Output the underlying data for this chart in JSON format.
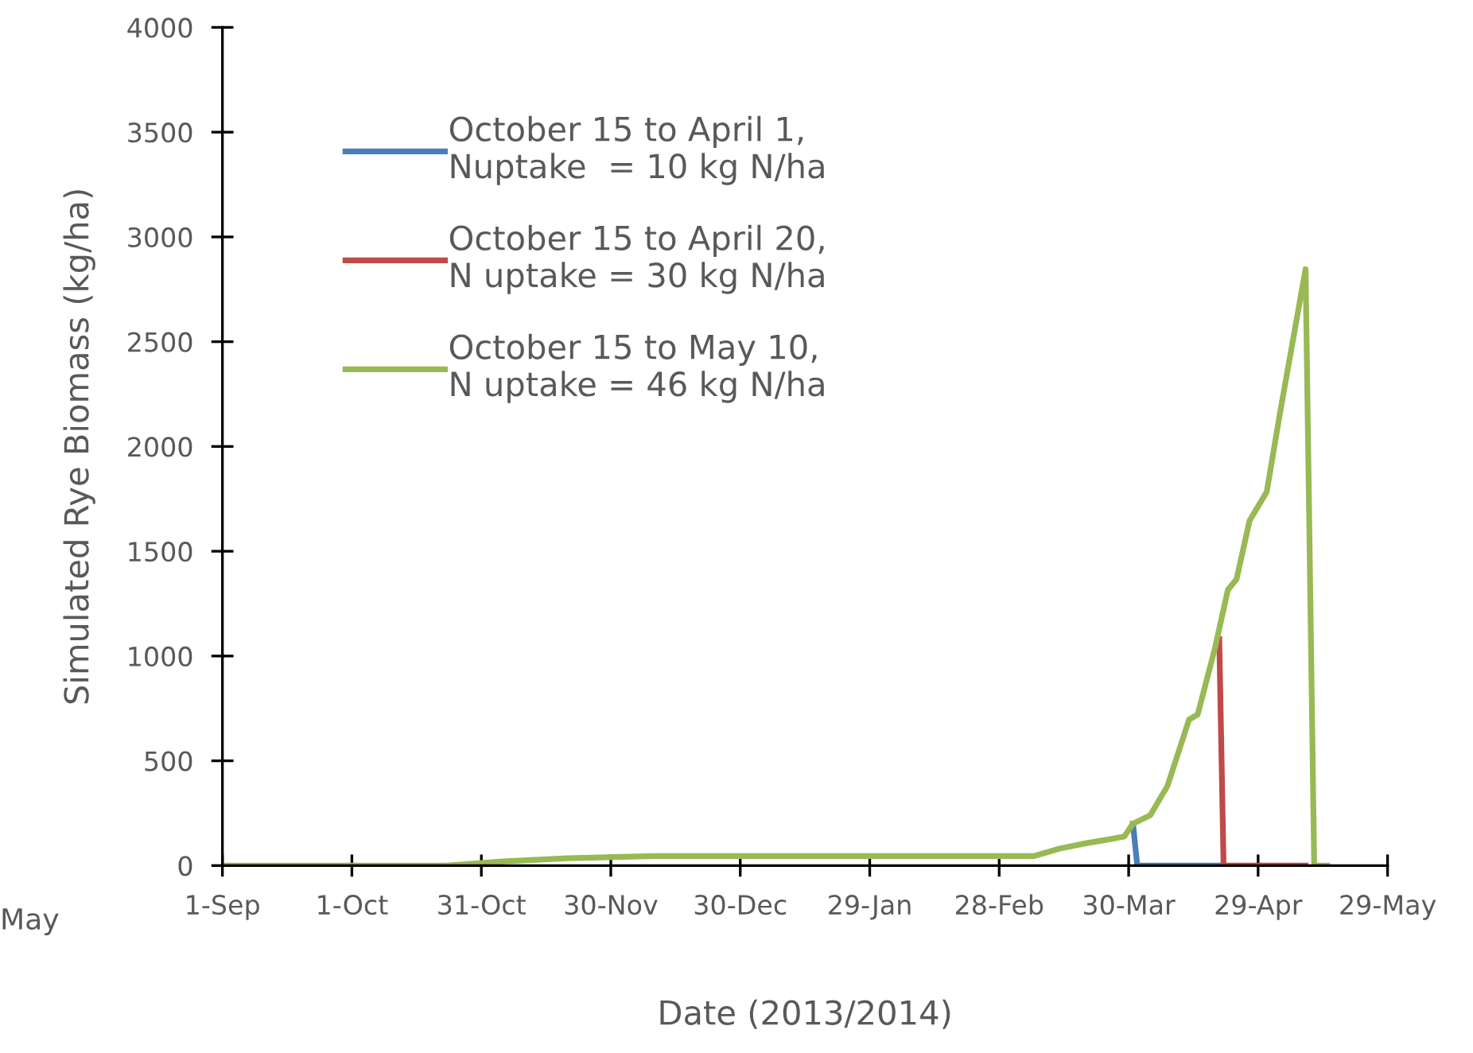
{
  "chart_data": {
    "type": "line",
    "xlabel": "Date (2013/2014)",
    "ylabel": "Simulated Rye Biomass (kg/ha)",
    "xlim": [
      "2013-09-01",
      "2014-05-29"
    ],
    "xticks": [
      {
        "value": "2013-09-01",
        "label": "1-Sep"
      },
      {
        "value": "2013-10-01",
        "label": "1-Oct"
      },
      {
        "value": "2013-10-31",
        "label": "31-Oct"
      },
      {
        "value": "2013-11-30",
        "label": "30-Nov"
      },
      {
        "value": "2013-12-30",
        "label": "30-Dec"
      },
      {
        "value": "2014-01-29",
        "label": "29-Jan"
      },
      {
        "value": "2014-02-28",
        "label": "28-Feb"
      },
      {
        "value": "2014-03-30",
        "label": "30-Mar"
      },
      {
        "value": "2014-04-29",
        "label": "29-Apr"
      },
      {
        "value": "2014-05-29",
        "label": "29-May"
      }
    ],
    "ylim": [
      0,
      4000
    ],
    "yticks": [
      0,
      500,
      1000,
      1500,
      2000,
      2500,
      3000,
      3500,
      4000
    ],
    "grid": false,
    "legend": "top left",
    "marker": "none",
    "line_style": "solid",
    "annotations": [
      "May"
    ],
    "series": [
      {
        "name": "October 15 to April 1,\nNuptake  = 10 kg N/ha",
        "color": "#4a7ebb",
        "x": [
          "2014-03-31",
          "2014-04-01",
          "2014-04-20"
        ],
        "values": [
          200,
          0,
          0
        ]
      },
      {
        "name": "October 15 to April 20,\nN uptake = 30 kg N/ha",
        "color": "#be4b48",
        "x": [
          "2014-04-20",
          "2014-04-21",
          "2014-05-10"
        ],
        "values": [
          1080,
          0,
          0
        ]
      },
      {
        "name": "October 15 to May 10,\nN uptake = 46 kg N/ha",
        "color": "#98b954",
        "x": [
          "2013-09-01",
          "2013-10-23",
          "2013-11-05",
          "2013-11-20",
          "2013-12-10",
          "2014-03-05",
          "2014-03-08",
          "2014-03-14",
          "2014-03-20",
          "2014-03-26",
          "2014-03-29",
          "2014-03-31",
          "2014-04-04",
          "2014-04-08",
          "2014-04-13",
          "2014-04-15",
          "2014-04-19",
          "2014-04-22",
          "2014-04-24",
          "2014-04-27",
          "2014-05-01",
          "2014-05-04",
          "2014-05-10",
          "2014-05-12",
          "2014-05-15"
        ],
        "values": [
          0,
          0,
          20,
          35,
          45,
          45,
          45,
          81,
          106,
          127,
          139,
          200,
          240,
          380,
          696,
          721,
          1037,
          1316,
          1366,
          1645,
          1784,
          2151,
          2846,
          0,
          0
        ]
      }
    ]
  }
}
